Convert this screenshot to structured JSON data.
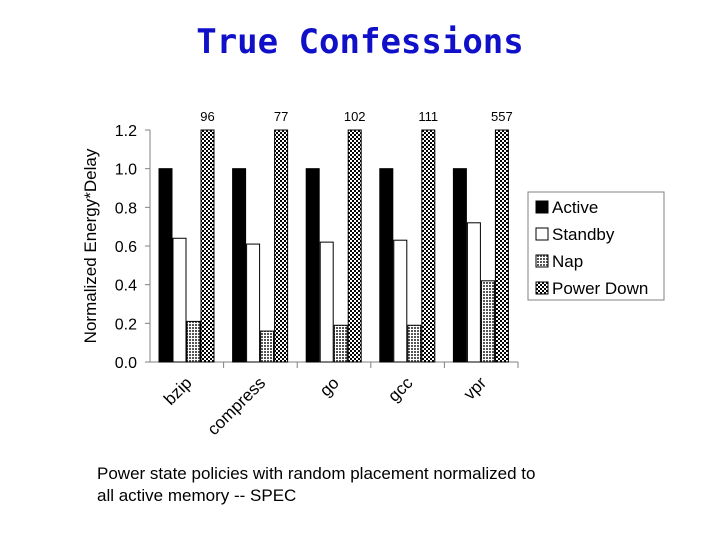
{
  "title": "True Confessions",
  "caption": {
    "line1": "Power state policies with random placement normalized to",
    "line2": "all active memory -- SPEC"
  },
  "chart_data": {
    "type": "bar",
    "title": "",
    "xlabel": "",
    "ylabel": "Normalized Energy*Delay",
    "ylim": [
      0,
      1.2
    ],
    "yticks": [
      "0.0",
      "0.2",
      "0.4",
      "0.6",
      "0.8",
      "1.0",
      "1.2"
    ],
    "grid": false,
    "legend_position": "right",
    "categories": [
      "bzip",
      "compress",
      "go",
      "gcc",
      "vpr"
    ],
    "series": [
      {
        "name": "Active",
        "pattern": "solid-black",
        "values": [
          1.0,
          1.0,
          1.0,
          1.0,
          1.0
        ]
      },
      {
        "name": "Standby",
        "pattern": "white",
        "values": [
          0.64,
          0.61,
          0.62,
          0.63,
          0.72
        ]
      },
      {
        "name": "Nap",
        "pattern": "dense-dots",
        "values": [
          0.21,
          0.16,
          0.19,
          0.19,
          0.42
        ]
      },
      {
        "name": "Power Down",
        "pattern": "checker",
        "values": [
          96,
          77,
          102,
          111,
          557
        ]
      }
    ],
    "clipped_labels": [
      "96",
      "77",
      "102",
      "111",
      "557"
    ]
  }
}
